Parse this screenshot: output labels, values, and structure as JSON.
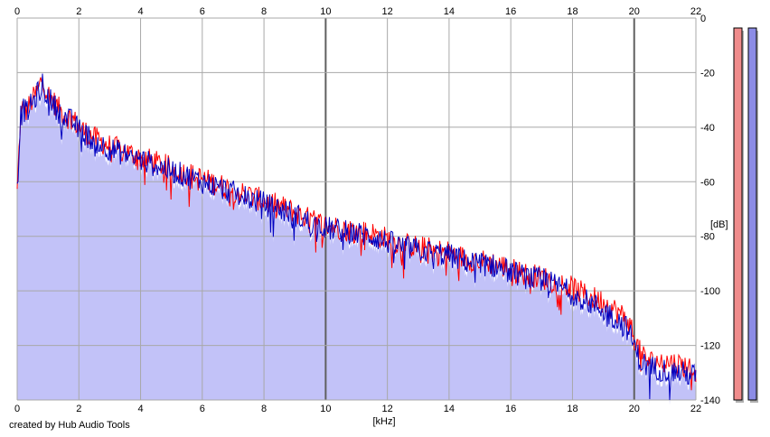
{
  "footer": {
    "credit": "created by Hub Audio Tools"
  },
  "colors": {
    "background": "#ffffff",
    "plot_fill": "#c2c2f8",
    "grid": "#a8a8a8",
    "grid_major": "#606060",
    "left_channel": "#ff0000",
    "right_channel": "#0000c0",
    "meter_left": "#f08c8c",
    "meter_right": "#8c8ce6"
  },
  "chart_data": {
    "type": "line",
    "title": "",
    "xlabel": "[kHz]",
    "ylabel": "[dB]",
    "xlim": [
      0,
      22
    ],
    "ylim": [
      -140,
      0
    ],
    "x_ticks": [
      0,
      2,
      4,
      6,
      8,
      10,
      12,
      14,
      16,
      18,
      20,
      22
    ],
    "x_tick_labels": [
      "0",
      "2",
      "4",
      "6",
      "8",
      "10",
      "12",
      "14",
      "16",
      "18",
      "20",
      "22"
    ],
    "y_ticks": [
      0,
      -20,
      -40,
      -60,
      -80,
      -100,
      -120,
      -140
    ],
    "y_tick_labels": [
      "0",
      "-20",
      "-40",
      "-60",
      "-80",
      "-100",
      "-120",
      "-140"
    ],
    "x_ticks_top": true,
    "grid": true,
    "major_gridlines_x": [
      10,
      20
    ],
    "legend": "none",
    "series": [
      {
        "channel": "left",
        "color": "#ff0000",
        "x": [
          0,
          0.1,
          0.2,
          0.3,
          0.5,
          0.7,
          0.8,
          1.0,
          1.2,
          1.4,
          1.6,
          1.8,
          2.0,
          2.5,
          3.0,
          3.5,
          4.0,
          4.5,
          5.0,
          5.5,
          6.0,
          6.5,
          7.0,
          7.5,
          8.0,
          8.5,
          9.0,
          9.5,
          10.0,
          10.5,
          11.0,
          11.5,
          12.0,
          12.5,
          13.0,
          13.5,
          14.0,
          14.5,
          15.0,
          15.5,
          16.0,
          16.5,
          17.0,
          17.5,
          18.0,
          18.5,
          19.0,
          19.5,
          19.8,
          20.0,
          20.2,
          20.5,
          21.0,
          21.5,
          22.0
        ],
        "y": [
          -64,
          -38,
          -32,
          -34,
          -30,
          -26,
          -22,
          -28,
          -31,
          -34,
          -36,
          -37,
          -40,
          -44,
          -47,
          -49,
          -51,
          -53,
          -55,
          -57,
          -59,
          -61,
          -63,
          -65,
          -67,
          -69,
          -71,
          -74,
          -76,
          -77,
          -78,
          -79,
          -81,
          -83,
          -84,
          -85,
          -86,
          -88,
          -89,
          -90,
          -92,
          -94,
          -95,
          -97,
          -99,
          -102,
          -104,
          -108,
          -111,
          -117,
          -123,
          -126,
          -126,
          -127,
          -129
        ]
      },
      {
        "channel": "right",
        "color": "#0000c0",
        "x": [
          0,
          0.1,
          0.2,
          0.3,
          0.5,
          0.7,
          0.8,
          1.0,
          1.2,
          1.4,
          1.6,
          1.8,
          2.0,
          2.5,
          3.0,
          3.5,
          4.0,
          4.5,
          5.0,
          5.5,
          6.0,
          6.5,
          7.0,
          7.5,
          8.0,
          8.5,
          9.0,
          9.5,
          10.0,
          10.5,
          11.0,
          11.5,
          12.0,
          12.5,
          13.0,
          13.5,
          14.0,
          14.5,
          15.0,
          15.5,
          16.0,
          16.5,
          17.0,
          17.5,
          18.0,
          18.5,
          19.0,
          19.5,
          19.8,
          20.0,
          20.2,
          20.5,
          21.0,
          21.5,
          22.0
        ],
        "y": [
          -64,
          -37,
          -33,
          -35,
          -31,
          -27,
          -24,
          -29,
          -32,
          -35,
          -37,
          -38,
          -41,
          -45,
          -48,
          -50,
          -52,
          -54,
          -56,
          -58,
          -60,
          -62,
          -64,
          -66,
          -68,
          -70,
          -72,
          -75,
          -77,
          -78,
          -79,
          -80,
          -82,
          -84,
          -85,
          -86,
          -87,
          -89,
          -90,
          -91,
          -93,
          -95,
          -96,
          -98,
          -101,
          -104,
          -107,
          -111,
          -114,
          -120,
          -126,
          -128,
          -129,
          -130,
          -131
        ]
      }
    ],
    "level_meters": [
      {
        "channel": "left",
        "level_db": -2
      },
      {
        "channel": "right",
        "level_db": -2
      }
    ]
  }
}
